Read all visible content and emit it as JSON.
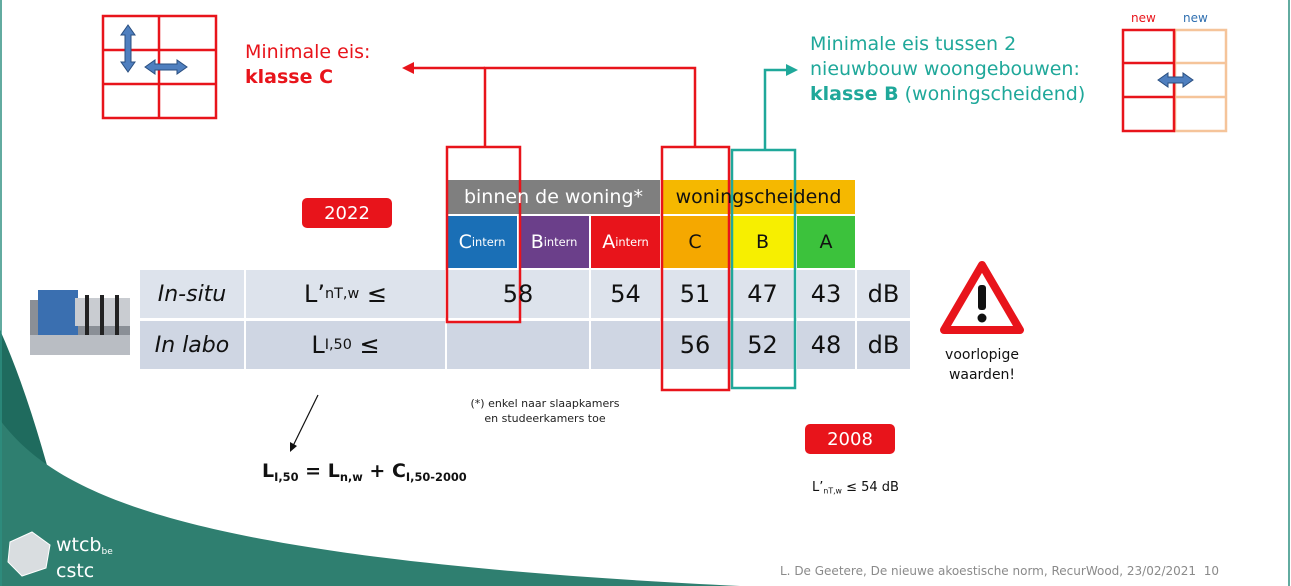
{
  "left_note": {
    "line1": "Minimale eis:",
    "line2": "klasse C"
  },
  "right_note": {
    "line1": "Minimale eis tussen 2",
    "line2": "nieuwbouw woongebouwen:",
    "line3_bold": "klasse B",
    "line3_rest": "(woningscheidend)"
  },
  "new_labels": [
    "new",
    "new"
  ],
  "year_badges": [
    "2022",
    "2008"
  ],
  "table": {
    "group_headers": [
      "binnen de woning*",
      "woningscheidend"
    ],
    "classes": [
      {
        "letter": "C",
        "sub": "intern"
      },
      {
        "letter": "B",
        "sub": "intern"
      },
      {
        "letter": "A",
        "sub": "intern"
      },
      {
        "letter": "C"
      },
      {
        "letter": "B"
      },
      {
        "letter": "A"
      }
    ],
    "rows": [
      {
        "label": "In-situ",
        "quantity": {
          "main": "L’",
          "sub": "nT,w",
          "tail": "≤"
        },
        "values": [
          58,
          54,
          51,
          47,
          43
        ],
        "unit": "dB"
      },
      {
        "label": "In labo",
        "quantity": {
          "main": "L",
          "sub": "I,50",
          "tail": "≤"
        },
        "values": [
          56,
          52,
          48
        ],
        "unit": "dB"
      }
    ]
  },
  "warning": [
    "voorlopige",
    "waarden!"
  ],
  "footnote": [
    "(*) enkel naar slaapkamers",
    "en studeerkamers toe"
  ],
  "formula": [
    {
      "text": "L",
      "sub": "I,50"
    },
    {
      "text": "= L",
      "sub": "n,w"
    },
    {
      "text": "+ C",
      "sub": "I,50-2000"
    }
  ],
  "old_requirement": {
    "main": "L’",
    "sub": "nT,w",
    "tail": "≤ 54 dB"
  },
  "logo": {
    "name": "wtcb",
    "suffix": "be",
    "second": "cstc"
  },
  "footer": {
    "text": "L. De Geetere, De nieuwe akoestische norm, RecurWood, 23/02/2021",
    "page": "10"
  }
}
